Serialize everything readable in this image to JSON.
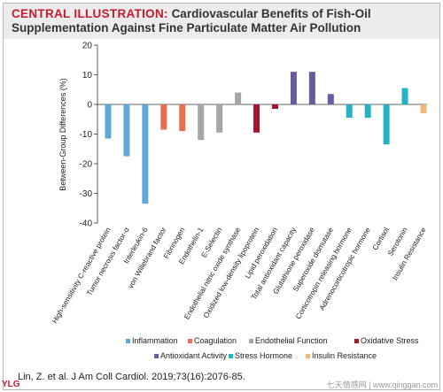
{
  "header": {
    "lead": "CENTRAL ILLUSTRATION:",
    "title": "Cardiovascular Benefits of Fish-Oil Supplementation Against Fine Particulate Matter Air Pollution"
  },
  "citation": "Lin, Z. et al. J Am Coll Cardiol. 2019;73(16):2076-85.",
  "brand": "YLG",
  "watermark": "七天情感网 | www.qinggan.com",
  "chart_data": {
    "type": "bar",
    "ylabel": "Between-Group Differences (%)",
    "ylim": [
      -40,
      20
    ],
    "yticks": [
      20,
      10,
      0,
      -10,
      -20,
      -30,
      -40
    ],
    "grid": false,
    "legend_placement": "bottom",
    "legend": [
      {
        "name": "Inflammation",
        "color": "#5fa8d8"
      },
      {
        "name": "Coagulation",
        "color": "#e8704f"
      },
      {
        "name": "Endothelial Function",
        "color": "#a6a6a6"
      },
      {
        "name": "Oxidative Stress",
        "color": "#a3172e"
      },
      {
        "name": "Antioxidant Activity",
        "color": "#6b5a9e"
      },
      {
        "name": "Stress Hormone",
        "color": "#26b3c3"
      },
      {
        "name": "Insulin Resistance",
        "color": "#f2b87a"
      }
    ],
    "bars": [
      {
        "label": "High-sensitivity C-reactive protein",
        "value": -11.5,
        "group": "Inflammation"
      },
      {
        "label": "Tumor necrosis factor-α",
        "value": -17.5,
        "group": "Inflammation"
      },
      {
        "label": "Interleukin-6",
        "value": -33.5,
        "group": "Inflammation"
      },
      {
        "label": "von Willebrand factor",
        "value": -8.5,
        "group": "Coagulation"
      },
      {
        "label": "Fibrinogen",
        "value": -9.0,
        "group": "Coagulation"
      },
      {
        "label": "Endothelin-1",
        "value": -12.0,
        "group": "Endothelial Function"
      },
      {
        "label": "E-Selectin",
        "value": -9.5,
        "group": "Endothelial Function"
      },
      {
        "label": "Endothelial nitric oxide synthase",
        "value": 4.0,
        "group": "Endothelial Function"
      },
      {
        "label": "Oxidized low-density lipoprotein",
        "value": -9.5,
        "group": "Oxidative Stress"
      },
      {
        "label": "Lipid peroxidation",
        "value": -1.5,
        "group": "Oxidative Stress"
      },
      {
        "label": "Total antioxidant capacity",
        "value": 11.0,
        "group": "Antioxidant Activity"
      },
      {
        "label": "Glutathione peroxidase",
        "value": 11.0,
        "group": "Antioxidant Activity"
      },
      {
        "label": "Superoxide dismutase",
        "value": 3.5,
        "group": "Antioxidant Activity"
      },
      {
        "label": "Corticotropin releasing hormone",
        "value": -4.5,
        "group": "Stress Hormone"
      },
      {
        "label": "Adrenocorticotropic hormone",
        "value": -4.5,
        "group": "Stress Hormone"
      },
      {
        "label": "Cortisol",
        "value": -13.5,
        "group": "Stress Hormone"
      },
      {
        "label": "Serotonin",
        "value": 5.5,
        "group": "Stress Hormone"
      },
      {
        "label": "Insulin Resistance",
        "value": -3.0,
        "group": "Insulin Resistance"
      }
    ]
  }
}
